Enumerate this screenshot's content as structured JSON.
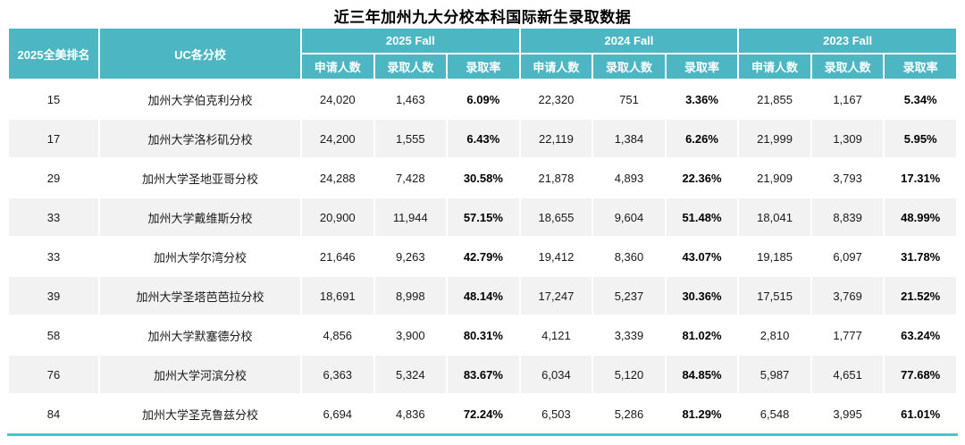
{
  "colors": {
    "header_teal": "#4cb6c2",
    "row_stripe": "#f2f2f2",
    "header_text": "#ffffff",
    "bottom_rule": "#53c0cb",
    "body_text": "#1a1a1a"
  },
  "chart_data": {
    "type": "table",
    "title": "近三年加州九大分校本科国际新生录取数据",
    "rank_col_header": "2025全美排名",
    "school_col_header": "UC各分校",
    "year_groups": [
      "2025 Fall",
      "2024 Fall",
      "2023 Fall"
    ],
    "metric_headers": [
      "申请人数",
      "录取人数",
      "录取率"
    ],
    "rows": [
      [
        "15",
        "加州大学伯克利分校",
        "24,020",
        "1,463",
        "6.09%",
        "22,320",
        "751",
        "3.36%",
        "21,855",
        "1,167",
        "5.34%"
      ],
      [
        "17",
        "加州大学洛杉矶分校",
        "24,200",
        "1,555",
        "6.43%",
        "22,119",
        "1,384",
        "6.26%",
        "21,999",
        "1,309",
        "5.95%"
      ],
      [
        "29",
        "加州大学圣地亚哥分校",
        "24,288",
        "7,428",
        "30.58%",
        "21,878",
        "4,893",
        "22.36%",
        "21,909",
        "3,793",
        "17.31%"
      ],
      [
        "33",
        "加州大学戴维斯分校",
        "20,900",
        "11,944",
        "57.15%",
        "18,655",
        "9,604",
        "51.48%",
        "18,041",
        "8,839",
        "48.99%"
      ],
      [
        "33",
        "加州大学尔湾分校",
        "21,646",
        "9,263",
        "42.79%",
        "19,412",
        "8,360",
        "43.07%",
        "19,185",
        "6,097",
        "31.78%"
      ],
      [
        "39",
        "加州大学圣塔芭芭拉分校",
        "18,691",
        "8,998",
        "48.14%",
        "17,247",
        "5,237",
        "30.36%",
        "17,515",
        "3,769",
        "21.52%"
      ],
      [
        "58",
        "加州大学默塞德分校",
        "4,856",
        "3,900",
        "80.31%",
        "4,121",
        "3,339",
        "81.02%",
        "2,810",
        "1,777",
        "63.24%"
      ],
      [
        "76",
        "加州大学河滨分校",
        "6,363",
        "5,324",
        "83.67%",
        "6,034",
        "5,120",
        "84.85%",
        "5,987",
        "4,651",
        "77.68%"
      ],
      [
        "84",
        "加州大学圣克鲁兹分校",
        "6,694",
        "4,836",
        "72.24%",
        "6,503",
        "5,286",
        "81.29%",
        "6,548",
        "3,995",
        "61.01%"
      ]
    ]
  }
}
